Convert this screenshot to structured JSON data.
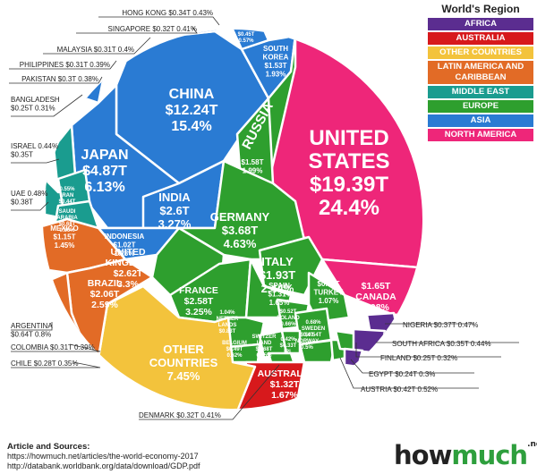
{
  "legend": {
    "title": "World's Region",
    "items": [
      {
        "label": "AFRICA",
        "color": "#5b2d90"
      },
      {
        "label": "AUSTRALIA",
        "color": "#d7191c"
      },
      {
        "label": "OTHER COUNTRIES",
        "color": "#f3c33c"
      },
      {
        "label": "LATIN AMERICA AND CARIBBEAN",
        "color": "#e26b26"
      },
      {
        "label": "MIDDLE EAST",
        "color": "#1a9c8f"
      },
      {
        "label": "EUROPE",
        "color": "#2e9f2e"
      },
      {
        "label": "ASIA",
        "color": "#2a7bd3"
      },
      {
        "label": "NORTH AMERICA",
        "color": "#ee2679"
      }
    ]
  },
  "chart_data": {
    "type": "voronoi treemap",
    "title": "",
    "unit": "GDP (US$ trillions) and share of world economy (%)",
    "countries": [
      {
        "name": "UNITED STATES",
        "gdp": "$19.39T",
        "share": "24.4%",
        "region": "NORTH AMERICA",
        "value": 19.39
      },
      {
        "name": "CHINA",
        "gdp": "$12.24T",
        "share": "15.4%",
        "region": "ASIA",
        "value": 12.24
      },
      {
        "name": "JAPAN",
        "gdp": "$4.87T",
        "share": "6.13%",
        "region": "ASIA",
        "value": 4.87
      },
      {
        "name": "GERMANY",
        "gdp": "$3.68T",
        "share": "4.63%",
        "region": "EUROPE",
        "value": 3.68
      },
      {
        "name": "INDIA",
        "gdp": "$2.6T",
        "share": "3.27%",
        "region": "ASIA",
        "value": 2.6
      },
      {
        "name": "UNITED KINGDOM",
        "gdp": "$2.62T",
        "share": "3.3%",
        "region": "EUROPE",
        "value": 2.62
      },
      {
        "name": "FRANCE",
        "gdp": "$2.58T",
        "share": "3.25%",
        "region": "EUROPE",
        "value": 2.58
      },
      {
        "name": "BRAZIL",
        "gdp": "$2.06T",
        "share": "2.59%",
        "region": "LATIN AMERICA AND CARIBBEAN",
        "value": 2.06
      },
      {
        "name": "ITALY",
        "gdp": "$1.93T",
        "share": "2.44%",
        "region": "EUROPE",
        "value": 1.93
      },
      {
        "name": "CANADA",
        "gdp": "$1.65T",
        "share": "2.08%",
        "region": "NORTH AMERICA",
        "value": 1.65
      },
      {
        "name": "RUSSIA",
        "gdp": "$1.58T",
        "share": "1.99%",
        "region": "EUROPE",
        "value": 1.58
      },
      {
        "name": "SOUTH KOREA",
        "gdp": "$1.53T",
        "share": "1.93%",
        "region": "ASIA",
        "value": 1.53
      },
      {
        "name": "AUSTRALIA",
        "gdp": "$1.32T",
        "share": "1.67%",
        "region": "AUSTRALIA",
        "value": 1.32
      },
      {
        "name": "SPAIN",
        "gdp": "$1.31T",
        "share": "1.65%",
        "region": "EUROPE",
        "value": 1.31
      },
      {
        "name": "MEXICO",
        "gdp": "$1.15T",
        "share": "1.45%",
        "region": "LATIN AMERICA AND CARIBBEAN",
        "value": 1.15
      },
      {
        "name": "INDONESIA",
        "gdp": "$1.02T",
        "share": "1.28%",
        "region": "ASIA",
        "value": 1.02
      },
      {
        "name": "TURKEY",
        "gdp": "$0.85T",
        "share": "1.07%",
        "region": "EUROPE",
        "value": 0.85
      },
      {
        "name": "NETHERLANDS",
        "gdp": "$0.83T",
        "share": "1.04%",
        "region": "EUROPE",
        "value": 0.83
      },
      {
        "name": "SAUDI ARABIA",
        "gdp": "$0.68T",
        "share": "0.86%",
        "region": "MIDDLE EAST",
        "value": 0.68
      },
      {
        "name": "SWITZERLAND",
        "gdp": "$0.68T",
        "share": "0.85%",
        "region": "EUROPE",
        "value": 0.68
      },
      {
        "name": "ARGENTINA",
        "gdp": "$0.64T",
        "share": "0.8%",
        "region": "LATIN AMERICA AND CARIBBEAN",
        "value": 0.64
      },
      {
        "name": "SWEDEN",
        "gdp": "$0.54T",
        "share": "0.68%",
        "region": "EUROPE",
        "value": 0.54
      },
      {
        "name": "POLAND",
        "gdp": "$0.52T",
        "share": "0.66%",
        "region": "EUROPE",
        "value": 0.52
      },
      {
        "name": "BELGIUM",
        "gdp": "$0.49T",
        "share": "0.62%",
        "region": "EUROPE",
        "value": 0.49
      },
      {
        "name": "THAILAND",
        "gdp": "$0.45T",
        "share": "0.57%",
        "region": "ASIA",
        "value": 0.45
      },
      {
        "name": "IRAN",
        "gdp": "$0.44T",
        "share": "0.55%",
        "region": "MIDDLE EAST",
        "value": 0.44
      },
      {
        "name": "AUSTRIA",
        "gdp": "$0.42T",
        "share": "0.52%",
        "region": "EUROPE",
        "value": 0.42
      },
      {
        "name": "NORWAY",
        "gdp": "$0.4T",
        "share": "0.5%",
        "region": "EUROPE",
        "value": 0.4
      },
      {
        "name": "UAE",
        "gdp": "$0.38T",
        "share": "0.48%",
        "region": "MIDDLE EAST",
        "value": 0.38
      },
      {
        "name": "NIGERIA",
        "gdp": "$0.37T",
        "share": "0.47%",
        "region": "AFRICA",
        "value": 0.37
      },
      {
        "name": "ISRAEL",
        "gdp": "$0.35T",
        "share": "0.44%",
        "region": "MIDDLE EAST",
        "value": 0.35
      },
      {
        "name": "SOUTH AFRICA",
        "gdp": "$0.35T",
        "share": "0.44%",
        "region": "AFRICA",
        "value": 0.35
      },
      {
        "name": "HONG KONG",
        "gdp": "$0.34T",
        "share": "0.43%",
        "region": "ASIA",
        "value": 0.34
      },
      {
        "name": "IRELAND",
        "gdp": "$0.33T",
        "share": "0.42%",
        "region": "EUROPE",
        "value": 0.33
      },
      {
        "name": "DENMARK",
        "gdp": "$0.32T",
        "share": "0.41%",
        "region": "EUROPE",
        "value": 0.32
      },
      {
        "name": "SINGAPORE",
        "gdp": "$0.32T",
        "share": "0.41%",
        "region": "ASIA",
        "value": 0.32
      },
      {
        "name": "MALAYSIA",
        "gdp": "$0.31T",
        "share": "0.4%",
        "region": "ASIA",
        "value": 0.31
      },
      {
        "name": "PHILIPPINES",
        "gdp": "$0.31T",
        "share": "0.39%",
        "region": "ASIA",
        "value": 0.31
      },
      {
        "name": "COLOMBIA",
        "gdp": "$0.31T",
        "share": "0.39%",
        "region": "LATIN AMERICA AND CARIBBEAN",
        "value": 0.31
      },
      {
        "name": "PAKISTAN",
        "gdp": "$0.3T",
        "share": "0.38%",
        "region": "ASIA",
        "value": 0.3
      },
      {
        "name": "CHILE",
        "gdp": "$0.28T",
        "share": "0.35%",
        "region": "LATIN AMERICA AND CARIBBEAN",
        "value": 0.28
      },
      {
        "name": "BANGLADESH",
        "gdp": "$0.25T",
        "share": "0.31%",
        "region": "ASIA",
        "value": 0.25
      },
      {
        "name": "FINLAND",
        "gdp": "$0.25T",
        "share": "0.32%",
        "region": "EUROPE",
        "value": 0.25
      },
      {
        "name": "EGYPT",
        "gdp": "$0.24T",
        "share": "0.3%",
        "region": "AFRICA",
        "value": 0.24
      },
      {
        "name": "OTHER COUNTRIES",
        "gdp": "",
        "share": "7.45%",
        "region": "OTHER COUNTRIES",
        "value": null
      }
    ],
    "cell_labels": [
      {
        "key": "UNITED STATES",
        "lines": [
          "UNITED",
          "STATES",
          "$19.39T",
          "24.4%"
        ],
        "size": "xl"
      },
      {
        "key": "CHINA",
        "lines": [
          "CHINA",
          "$12.24T",
          "15.4%"
        ],
        "size": "l"
      },
      {
        "key": "JAPAN",
        "lines": [
          "JAPAN",
          "$4.87T",
          "6.13%"
        ],
        "size": "l"
      },
      {
        "key": "INDIA",
        "lines": [
          "INDIA",
          "$2.6T",
          "3.27%"
        ],
        "size": "m"
      },
      {
        "key": "GERMANY",
        "lines": [
          "GERMANY",
          "$3.68T",
          "4.63%"
        ],
        "size": "m"
      },
      {
        "key": "UNITED KINGDOM",
        "lines": [
          "UNITED",
          "KINGDOM",
          "$2.62T",
          "3.3%"
        ],
        "size": "s"
      },
      {
        "key": "FRANCE",
        "lines": [
          "FRANCE",
          "$2.58T",
          "3.25%"
        ],
        "size": "s"
      },
      {
        "key": "ITALY",
        "lines": [
          "ITALY",
          "$1.93T",
          "2.44%"
        ],
        "size": "m"
      },
      {
        "key": "BRAZIL",
        "lines": [
          "BRAZIL",
          "$2.06T",
          "2.59%"
        ],
        "size": "s"
      },
      {
        "key": "OTHER COUNTRIES",
        "lines": [
          "OTHER",
          "COUNTRIES",
          "7.45%"
        ],
        "size": "m"
      },
      {
        "key": "CANADA",
        "lines": [
          "$1.65T",
          "CANADA",
          "2.08%"
        ],
        "size": "s"
      },
      {
        "key": "RUSSIA",
        "lines": [
          "RUSSIA"
        ],
        "size": "russia"
      },
      {
        "key": "RUSSIA-VALUE",
        "lines": [
          "$1.58T",
          "1.99%"
        ],
        "size": "xs"
      },
      {
        "key": "SOUTH KOREA",
        "lines": [
          "SOUTH",
          "KOREA",
          "$1.53T",
          "1.93%"
        ],
        "size": "xs"
      },
      {
        "key": "THAILAND",
        "lines": [
          "THAILAND",
          "$0.45T",
          "0.57%"
        ],
        "size": "xxs"
      },
      {
        "key": "INDONESIA",
        "lines": [
          "INDONESIA",
          "$1.02T",
          "1.28%"
        ],
        "size": "xs"
      },
      {
        "key": "MEXICO",
        "lines": [
          "MEXICO",
          "$1.15T",
          "1.45%"
        ],
        "size": "xs"
      },
      {
        "key": "SPAIN",
        "lines": [
          "SPAIN",
          "$1.31T",
          "1.65%"
        ],
        "size": "xs"
      },
      {
        "key": "TURKEY",
        "lines": [
          "$0.85T",
          "TURKEY",
          "1.07%"
        ],
        "size": "xs"
      },
      {
        "key": "AUSTRALIA",
        "lines": [
          "AUSTRALIA",
          "$1.32T",
          "1.67%"
        ],
        "size": "s"
      },
      {
        "key": "NETHERLANDS",
        "lines": [
          "1.04%",
          "NETHER",
          "LANDS",
          "$0.83T"
        ],
        "size": "xxs"
      },
      {
        "key": "SWITZERLAND",
        "lines": [
          "SWITZER",
          "LAND",
          "$0.68T",
          "0.85%"
        ],
        "size": "xxs"
      },
      {
        "key": "BELGIUM",
        "lines": [
          "BELGIUM",
          "$0.49T",
          "0.62%"
        ],
        "size": "xxs"
      },
      {
        "key": "POLAND",
        "lines": [
          "$0.52T",
          "POLAND",
          "0.66%"
        ],
        "size": "xxs"
      },
      {
        "key": "SWEDEN",
        "lines": [
          "0.68%",
          "SWEDEN",
          "$0.54T"
        ],
        "size": "xxs"
      },
      {
        "key": "IRELAND",
        "lines": [
          "0.42%",
          "$0.33T",
          "IRL"
        ],
        "size": "xxs"
      },
      {
        "key": "NORWAY",
        "lines": [
          "$0.4T",
          "NORWAY",
          "0.5%"
        ],
        "size": "xxs"
      },
      {
        "key": "IRAN",
        "lines": [
          "0.55%",
          "IRAN",
          "$0.44T"
        ],
        "size": "xxs"
      },
      {
        "key": "SAUDI ARABIA",
        "lines": [
          "SAUDI",
          "ARABIA",
          "$0.68T",
          "0.86%"
        ],
        "size": "xxs"
      }
    ],
    "callouts": [
      {
        "key": "HONG KONG",
        "lines": [
          "HONG KONG  $0.34T  0.43%"
        ],
        "anchor": "end"
      },
      {
        "key": "SINGAPORE",
        "lines": [
          "SINGAPORE  $0.32T  0.41%"
        ],
        "anchor": "end"
      },
      {
        "key": "MALAYSIA",
        "lines": [
          "MALAYSIA  $0.31T   0.4%"
        ],
        "anchor": "end"
      },
      {
        "key": "PHILIPPINES",
        "lines": [
          "PHILIPPINES  $0.31T  0.39%"
        ],
        "anchor": "end"
      },
      {
        "key": "PAKISTAN",
        "lines": [
          "PAKISTAN  $0.3T  0.38%"
        ],
        "anchor": "end"
      },
      {
        "key": "BANGLADESH",
        "lines": [
          "BANGLADESH",
          "$0.25T  0.31%"
        ],
        "anchor": "start"
      },
      {
        "key": "ISRAEL",
        "lines": [
          "ISRAEL  0.44%",
          "$0.35T"
        ],
        "anchor": "start"
      },
      {
        "key": "UAE",
        "lines": [
          "UAE  0.48%",
          "$0.38T"
        ],
        "anchor": "start"
      },
      {
        "key": "ARGENTINA",
        "lines": [
          "ARGENTINA",
          "$0.64T  0.8%"
        ],
        "anchor": "start"
      },
      {
        "key": "COLOMBIA",
        "lines": [
          "COLOMBIA  $0.31T  0.39%"
        ],
        "anchor": "start"
      },
      {
        "key": "CHILE",
        "lines": [
          "CHILE  $0.28T  0.35%"
        ],
        "anchor": "start"
      },
      {
        "key": "DENMARK",
        "lines": [
          "DENMARK  $0.32T  0.41%"
        ],
        "anchor": "start"
      },
      {
        "key": "NIGERIA",
        "lines": [
          "NIGERIA  $0.37T  0.47%"
        ],
        "anchor": "start"
      },
      {
        "key": "SOUTH AFRICA",
        "lines": [
          "SOUTH AFRICA  $0.35T  0.44%"
        ],
        "anchor": "start"
      },
      {
        "key": "FINLAND",
        "lines": [
          "FINLAND  $0.25T   0.32%"
        ],
        "anchor": "start"
      },
      {
        "key": "EGYPT",
        "lines": [
          "EGYPT  $0.24T   0.3%"
        ],
        "anchor": "start"
      },
      {
        "key": "AUSTRIA",
        "lines": [
          "AUSTRIA  $0.42T   0.52%"
        ],
        "anchor": "start"
      }
    ]
  },
  "footer": {
    "title": "Article and Sources:",
    "line1": "https://howmuch.net/articles/the-world-economy-2017",
    "line2": "http://databank.worldbank.org/data/download/GDP.pdf"
  },
  "logo": {
    "how": "how",
    "much": "much",
    "net": ".net"
  }
}
